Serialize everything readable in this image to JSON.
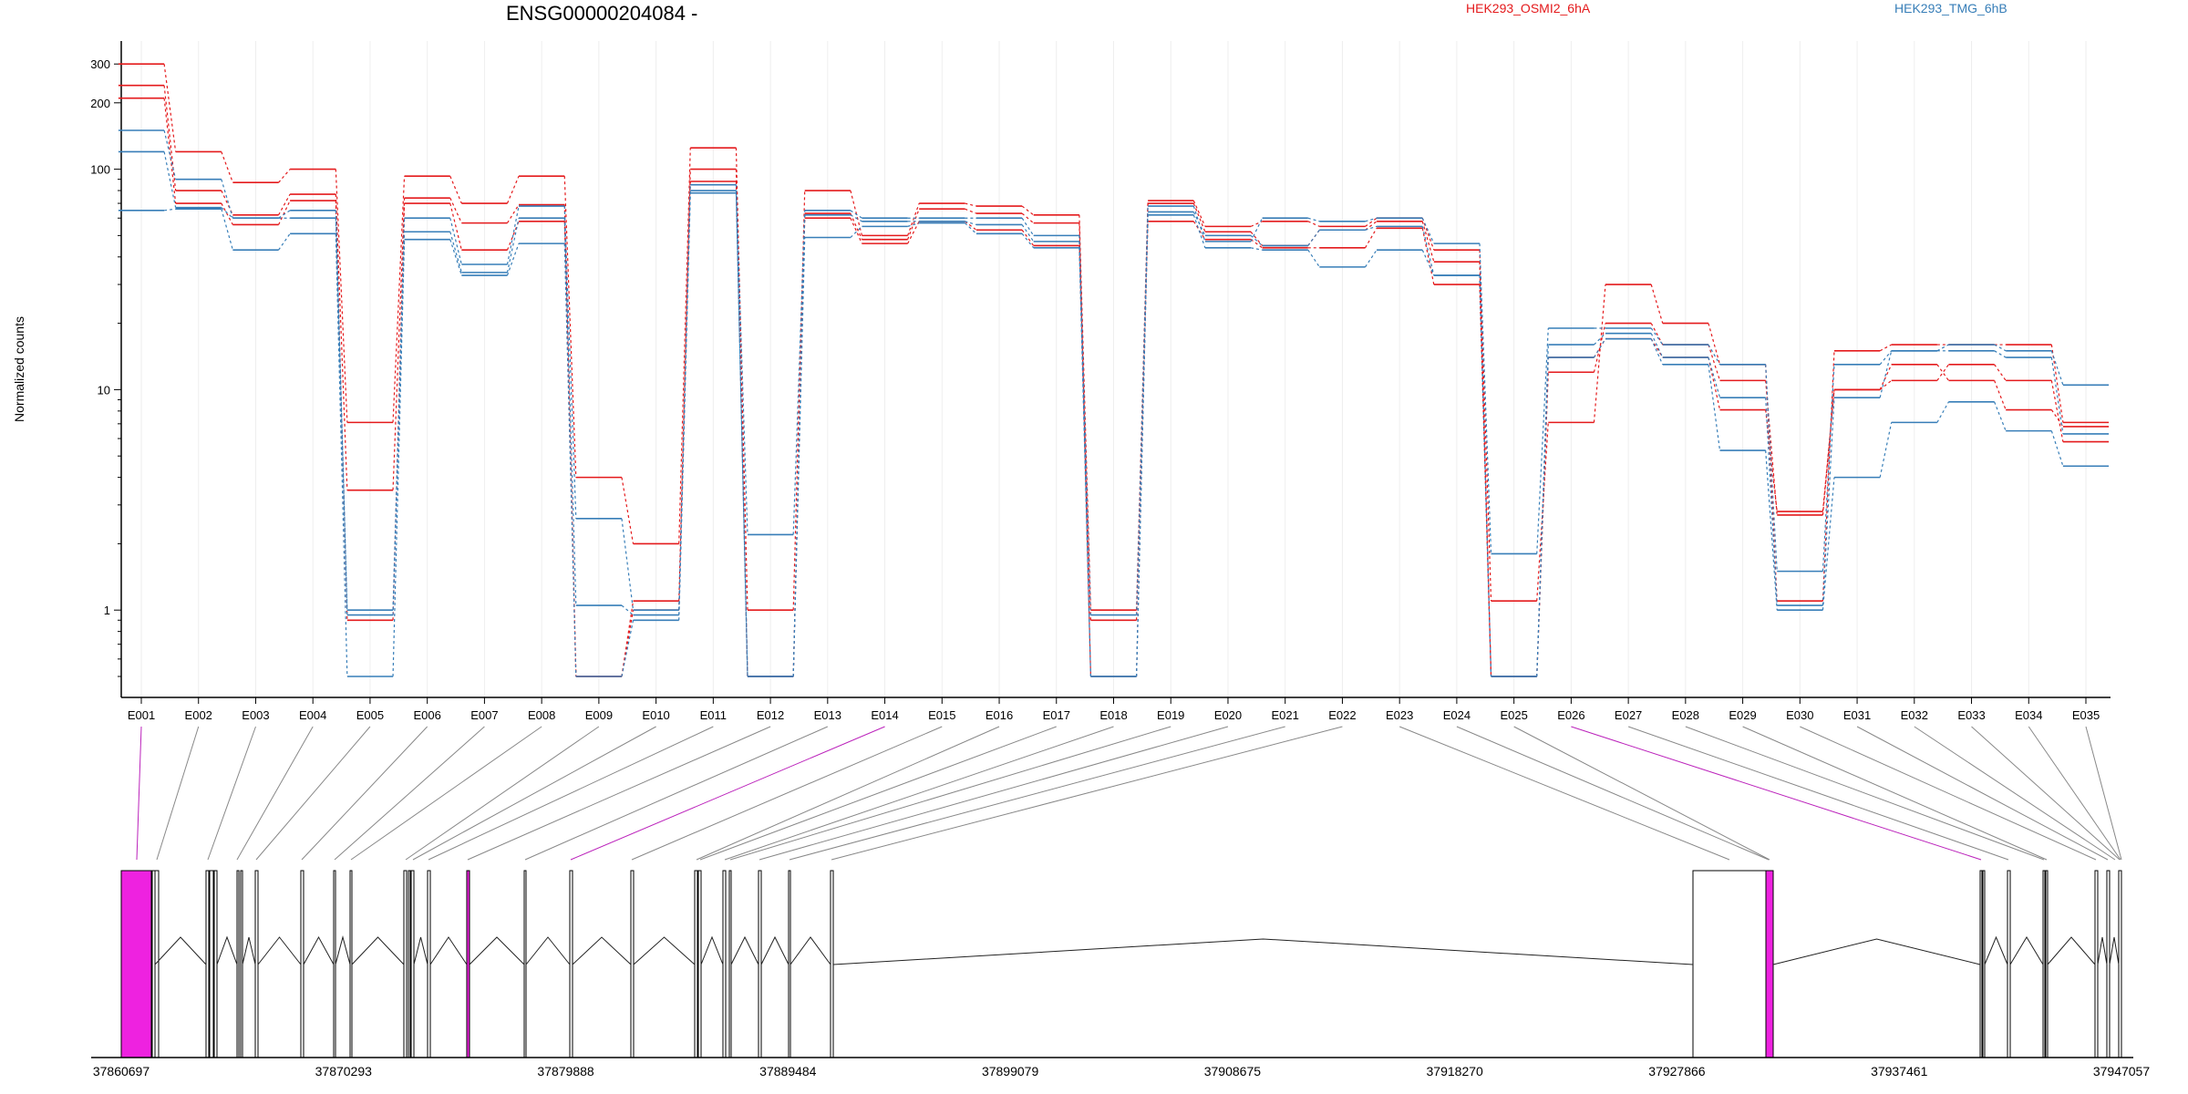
{
  "chart_data": {
    "type": "line",
    "title": "ENSG00000204084 -",
    "ylabel": "Normalized counts",
    "xlabel": "",
    "yscale": "log",
    "ylim": [
      0.5,
      400
    ],
    "yticks": [
      1,
      10,
      100,
      200,
      300
    ],
    "ytick_labels": [
      "1",
      "10",
      "100",
      "200",
      "300"
    ],
    "categories": [
      "E001",
      "E002",
      "E003",
      "E004",
      "E005",
      "E006",
      "E007",
      "E008",
      "E009",
      "E010",
      "E011",
      "E012",
      "E013",
      "E014",
      "E015",
      "E016",
      "E017",
      "E018",
      "E019",
      "E020",
      "E021",
      "E022",
      "E023",
      "E024",
      "E025",
      "E026",
      "E027",
      "E028",
      "E029",
      "E030",
      "E031",
      "E032",
      "E033",
      "E034",
      "E035"
    ],
    "legend": [
      {
        "name": "HEK293_OSMI2_6hA",
        "color": "#e41a1c"
      },
      {
        "name": "HEK293_TMG_6hB",
        "color": "#377eb8"
      }
    ],
    "series": [
      {
        "group": "HEK293_OSMI2_6hA",
        "color": "#e41a1c",
        "values": [
          300,
          120,
          87,
          100,
          7.1,
          93,
          70,
          93,
          4,
          2,
          125,
          1,
          80,
          50,
          70,
          68,
          62,
          1,
          72,
          55,
          58,
          55,
          60,
          43,
          1.1,
          7.1,
          30,
          20,
          13,
          1.1,
          15,
          16,
          16,
          16,
          7.1
        ]
      },
      {
        "group": "HEK293_OSMI2_6hA",
        "color": "#e41a1c",
        "values": [
          240,
          80,
          62,
          77,
          3.5,
          74,
          57,
          69,
          0.5,
          1.1,
          100,
          0.5,
          63,
          48,
          66,
          63,
          57,
          0.5,
          70,
          52,
          45,
          53,
          58,
          38,
          0.5,
          12,
          20,
          16,
          11,
          2.7,
          10,
          11,
          13,
          11,
          5.8
        ]
      },
      {
        "group": "HEK293_OSMI2_6hA",
        "color": "#e41a1c",
        "values": [
          210,
          70,
          56,
          72,
          0.9,
          70,
          43,
          58,
          0.5,
          1.0,
          88,
          0.5,
          60,
          46,
          58,
          53,
          45,
          0.9,
          58,
          48,
          44,
          44,
          54,
          30,
          0.5,
          14,
          17,
          14,
          8.1,
          2.8,
          10,
          13,
          11,
          8.1,
          6.8
        ]
      },
      {
        "group": "HEK293_TMG_6hB",
        "color": "#377eb8",
        "values": [
          150,
          90,
          60,
          65,
          1.0,
          60,
          37,
          68,
          2.6,
          1.0,
          85,
          2.2,
          65,
          60,
          60,
          60,
          50,
          0.95,
          68,
          47,
          60,
          58,
          60,
          46,
          1.8,
          19,
          19,
          16,
          13,
          1.5,
          13,
          15,
          16,
          15,
          10.5
        ]
      },
      {
        "group": "HEK293_TMG_6hB",
        "color": "#377eb8",
        "values": [
          120,
          67,
          60,
          60,
          0.95,
          52,
          34,
          60,
          1.05,
          0.95,
          80,
          0.5,
          62,
          58,
          58,
          56,
          47,
          0.5,
          64,
          50,
          45,
          53,
          55,
          33,
          0.5,
          16,
          18,
          14,
          9.2,
          1.05,
          9.2,
          15,
          15,
          14,
          6.3
        ]
      },
      {
        "group": "HEK293_TMG_6hB",
        "color": "#377eb8",
        "values": [
          65,
          66,
          43,
          51,
          0.5,
          48,
          33,
          46,
          0.5,
          0.9,
          78,
          0.5,
          49,
          55,
          57,
          51,
          44,
          0.5,
          62,
          44,
          43,
          36,
          43,
          33,
          0.5,
          14,
          17,
          13,
          5.3,
          1.0,
          4.0,
          7.1,
          8.8,
          6.5,
          4.5
        ]
      }
    ],
    "exon_highlight": [
      1,
      14,
      26
    ]
  },
  "gene_model": {
    "coordinate_labels": [
      "37860697",
      "37870293",
      "37879888",
      "37889484",
      "37899079",
      "37908675",
      "37918270",
      "37927866",
      "37937461",
      "37947057"
    ]
  }
}
